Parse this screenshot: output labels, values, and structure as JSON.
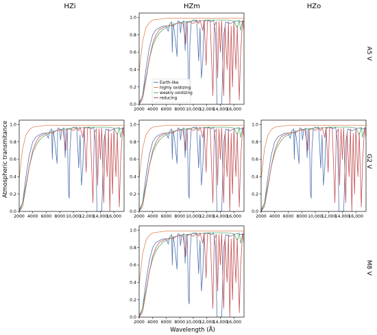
{
  "figure": {
    "column_titles": [
      "HZi",
      "HZm",
      "HZo"
    ],
    "row_titles": [
      "A5 V",
      "G2 V",
      "M8 V"
    ],
    "ylabel": "Atmospheric transmitance",
    "xlabel": "Wavelength (Å)"
  },
  "legend": {
    "placement": "lower-left of top panel",
    "entries": [
      {
        "label": "Earth-like",
        "color": "#4c72b0"
      },
      {
        "label": "highly oxidizing",
        "color": "#dd8452"
      },
      {
        "label": "weakly oxidizing",
        "color": "#55a868"
      },
      {
        "label": "reducing",
        "color": "#c44e52"
      }
    ]
  },
  "chart_data": {
    "type": "line",
    "xlim": [
      2000,
      17500
    ],
    "ylim": [
      0.0,
      1.05
    ],
    "x_ticks": [
      2000,
      4000,
      6000,
      8000,
      10000,
      12000,
      14000,
      16000
    ],
    "x_tick_labels": [
      "2000",
      "4000",
      "6000",
      "8000",
      "10,000",
      "12,000",
      "14,000",
      "16,000"
    ],
    "y_ticks": [
      0.0,
      0.2,
      0.4,
      0.6,
      0.8,
      1.0
    ],
    "y_tick_labels": [
      "0.0",
      "0.2",
      "0.4",
      "0.6",
      "0.8",
      "1.0"
    ],
    "panels": [
      {
        "row": "A5 V",
        "column": "HZm",
        "show_legend": true,
        "show_ylabel": false,
        "show_xlabel": false
      },
      {
        "row": "G2 V",
        "column": "HZi",
        "show_legend": false,
        "show_ylabel": true,
        "show_xlabel": false
      },
      {
        "row": "G2 V",
        "column": "HZm",
        "show_legend": false,
        "show_ylabel": false,
        "show_xlabel": false
      },
      {
        "row": "G2 V",
        "column": "HZo",
        "show_legend": false,
        "show_ylabel": false,
        "show_xlabel": false
      },
      {
        "row": "M8 V",
        "column": "HZm",
        "show_legend": false,
        "show_ylabel": false,
        "show_xlabel": true
      }
    ],
    "series": [
      {
        "name": "Earth-like",
        "color": "#4c72b0",
        "points": [
          [
            2000,
            0.0
          ],
          [
            2500,
            0.1
          ],
          [
            3000,
            0.4
          ],
          [
            3500,
            0.65
          ],
          [
            4000,
            0.8
          ],
          [
            4500,
            0.86
          ],
          [
            5000,
            0.88
          ],
          [
            5500,
            0.9
          ],
          [
            6000,
            0.9
          ],
          [
            6300,
            0.84
          ],
          [
            6500,
            0.92
          ],
          [
            6800,
            0.95
          ],
          [
            6900,
            0.6
          ],
          [
            7000,
            0.93
          ],
          [
            7200,
            0.85
          ],
          [
            7600,
            0.55
          ],
          [
            7700,
            0.96
          ],
          [
            8000,
            0.95
          ],
          [
            8100,
            0.82
          ],
          [
            8300,
            0.94
          ],
          [
            8600,
            0.96
          ],
          [
            8800,
            0.62
          ],
          [
            8900,
            0.93
          ],
          [
            9100,
            0.95
          ],
          [
            9300,
            0.2
          ],
          [
            9400,
            0.15
          ],
          [
            9500,
            0.7
          ],
          [
            9700,
            0.95
          ],
          [
            10000,
            0.97
          ],
          [
            10500,
            0.97
          ],
          [
            10800,
            0.5
          ],
          [
            11000,
            0.88
          ],
          [
            11200,
            0.3
          ],
          [
            11400,
            0.5
          ],
          [
            11600,
            0.95
          ],
          [
            12000,
            0.97
          ],
          [
            12500,
            0.96
          ],
          [
            12700,
            0.95
          ],
          [
            13000,
            0.97
          ],
          [
            13300,
            0.8
          ],
          [
            13500,
            0.0
          ],
          [
            14200,
            0.0
          ],
          [
            14500,
            0.8
          ],
          [
            14800,
            0.95
          ],
          [
            15000,
            0.94
          ],
          [
            15500,
            0.93
          ],
          [
            16000,
            0.95
          ],
          [
            16500,
            0.96
          ],
          [
            17000,
            0.95
          ],
          [
            17500,
            0.95
          ]
        ]
      },
      {
        "name": "highly oxidizing",
        "color": "#dd8452",
        "points": [
          [
            2000,
            0.38
          ],
          [
            2500,
            0.72
          ],
          [
            3000,
            0.88
          ],
          [
            3500,
            0.94
          ],
          [
            4000,
            0.97
          ],
          [
            5000,
            0.98
          ],
          [
            6000,
            0.99
          ],
          [
            8000,
            0.99
          ],
          [
            10000,
            0.99
          ],
          [
            12000,
            0.99
          ],
          [
            14000,
            0.99
          ],
          [
            16000,
            0.99
          ],
          [
            17500,
            0.99
          ]
        ]
      },
      {
        "name": "weakly oxidizing",
        "color": "#55a868",
        "points": [
          [
            2000,
            0.02
          ],
          [
            2500,
            0.1
          ],
          [
            3000,
            0.3
          ],
          [
            3500,
            0.52
          ],
          [
            4000,
            0.67
          ],
          [
            4500,
            0.76
          ],
          [
            5000,
            0.82
          ],
          [
            5500,
            0.86
          ],
          [
            6000,
            0.88
          ],
          [
            6500,
            0.9
          ],
          [
            7000,
            0.92
          ],
          [
            7500,
            0.93
          ],
          [
            8000,
            0.94
          ],
          [
            9000,
            0.95
          ],
          [
            10000,
            0.96
          ],
          [
            11000,
            0.96
          ],
          [
            12000,
            0.97
          ],
          [
            13000,
            0.97
          ],
          [
            14000,
            0.97
          ],
          [
            15000,
            0.97
          ],
          [
            16000,
            0.96
          ],
          [
            16500,
            0.88
          ],
          [
            16800,
            0.97
          ],
          [
            17000,
            0.85
          ],
          [
            17300,
            0.96
          ],
          [
            17500,
            0.96
          ]
        ]
      },
      {
        "name": "reducing",
        "color": "#c44e52",
        "points": [
          [
            2000,
            0.0
          ],
          [
            2500,
            0.06
          ],
          [
            3000,
            0.28
          ],
          [
            3500,
            0.52
          ],
          [
            4000,
            0.7
          ],
          [
            4500,
            0.8
          ],
          [
            5000,
            0.86
          ],
          [
            5500,
            0.88
          ],
          [
            6000,
            0.9
          ],
          [
            6500,
            0.91
          ],
          [
            7000,
            0.9
          ],
          [
            7500,
            0.93
          ],
          [
            8000,
            0.94
          ],
          [
            8500,
            0.93
          ],
          [
            8900,
            0.7
          ],
          [
            9100,
            0.94
          ],
          [
            9500,
            0.95
          ],
          [
            10000,
            0.93
          ],
          [
            10500,
            0.96
          ],
          [
            10800,
            0.93
          ],
          [
            11000,
            0.97
          ],
          [
            11400,
            0.85
          ],
          [
            11600,
            0.97
          ],
          [
            11900,
            0.45
          ],
          [
            12100,
            0.96
          ],
          [
            12500,
            0.96
          ],
          [
            12900,
            0.1
          ],
          [
            13100,
            0.9
          ],
          [
            13400,
            0.95
          ],
          [
            13600,
            0.3
          ],
          [
            13800,
            0.95
          ],
          [
            14000,
            0.6
          ],
          [
            14200,
            0.96
          ],
          [
            14500,
            0.1
          ],
          [
            14700,
            0.9
          ],
          [
            15000,
            0.4
          ],
          [
            15200,
            0.95
          ],
          [
            15400,
            0.0
          ],
          [
            15600,
            0.9
          ],
          [
            15800,
            0.2
          ],
          [
            16000,
            0.95
          ],
          [
            16300,
            0.4
          ],
          [
            16500,
            0.9
          ],
          [
            16800,
            0.05
          ],
          [
            17000,
            0.6
          ],
          [
            17300,
            0.97
          ],
          [
            17500,
            0.85
          ]
        ]
      }
    ]
  }
}
